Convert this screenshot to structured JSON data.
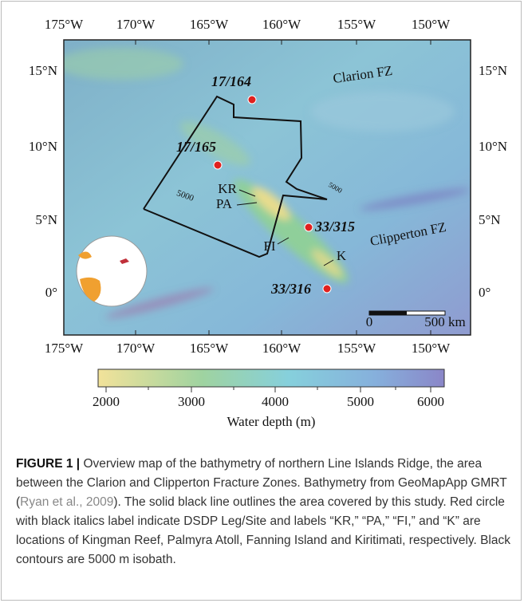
{
  "figure": {
    "lon_labels": [
      "175°W",
      "170°W",
      "165°W",
      "160°W",
      "155°W",
      "150°W"
    ],
    "lat_labels": [
      "15°N",
      "10°N",
      "5°N",
      "0°"
    ],
    "sites": [
      "17/164",
      "17/165",
      "33/315",
      "33/316"
    ],
    "places": [
      "KR",
      "PA",
      "FI",
      "K"
    ],
    "zones": [
      "Clarion FZ",
      "Clipperton FZ"
    ],
    "contour_labels": [
      "5000",
      "5000"
    ],
    "scale_labels": [
      "0",
      "500 km"
    ],
    "colorbar": {
      "ticks": [
        "2000",
        "3000",
        "4000",
        "5000",
        "6000"
      ],
      "title": "Water depth (m)"
    }
  },
  "caption": {
    "label": "FIGURE 1 |",
    "text_before": " Overview map of the bathymetry of northern Line Islands Ridge, the area between the Clarion and Clipperton Fracture Zones. Bathymetry from GeoMapApp GMRT (",
    "citation": "Ryan et al., 2009",
    "text_after": "). The solid black line outlines the area covered by this study. Red circle with black italics label indicate DSDP Leg/Site and labels “KR,” “PA,” “FI,” and “K” are locations of Kingman Reef, Palmyra Atoll, Fanning Island and Kiritimati, respectively. Black contours are 5000 m isobath."
  }
}
